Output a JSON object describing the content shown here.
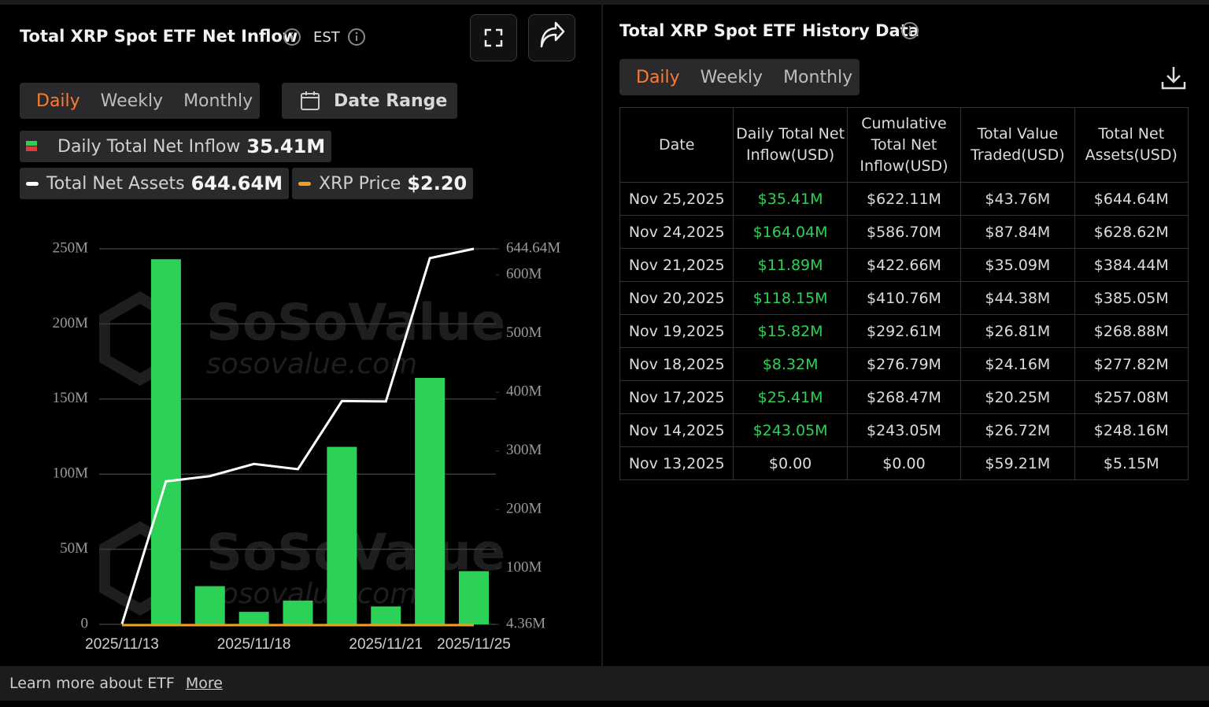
{
  "left_panel": {
    "title": "Total XRP Spot ETF Net Inflow",
    "timezone": "EST",
    "tabs": [
      "Daily",
      "Weekly",
      "Monthly"
    ],
    "date_range": "Date Range",
    "legend": [
      {
        "label": "Daily Total Net Inflow",
        "value": "35.41M"
      },
      {
        "label": "Total Net Assets",
        "value": "644.64M"
      },
      {
        "label": "XRP Price",
        "value": "$2.20"
      }
    ]
  },
  "watermark": {
    "brand": "SoSoValue",
    "site": "sosovalue.com"
  },
  "chart_data": {
    "type": "bar",
    "categories": [
      "2025/11/13",
      null,
      null,
      "2025/11/18",
      null,
      null,
      "2025/11/21",
      null,
      "2025/11/25"
    ],
    "series": [
      {
        "name": "Daily Total Net Inflow",
        "color": "#2ed158",
        "values": [
          0,
          243.05,
          25.41,
          8.32,
          15.82,
          118.15,
          11.89,
          164.04,
          35.41
        ]
      },
      {
        "name": "Total Net Assets",
        "color": "#ffffff",
        "axis": "y2",
        "type": "line",
        "values": [
          5.15,
          248.16,
          257.08,
          277.82,
          268.88,
          385.05,
          384.44,
          628.62,
          644.64
        ]
      }
    ],
    "ylim": [
      0,
      250
    ],
    "yticks": [
      {
        "value": 0,
        "label": "0"
      },
      {
        "value": 50,
        "label": "50M"
      },
      {
        "value": 100,
        "label": "100M"
      },
      {
        "value": 150,
        "label": "150M"
      },
      {
        "value": 200,
        "label": "200M"
      },
      {
        "value": 250,
        "label": "250M"
      }
    ],
    "y2lim": [
      4.36,
      644.64
    ],
    "y2ticks": [
      {
        "value": 4.36,
        "label": "4.36M"
      },
      {
        "value": 100,
        "label": "100M"
      },
      {
        "value": 200,
        "label": "200M"
      },
      {
        "value": 300,
        "label": "300M"
      },
      {
        "value": 400,
        "label": "400M"
      },
      {
        "value": 500,
        "label": "500M"
      },
      {
        "value": 600,
        "label": "600M"
      },
      {
        "value": 644.64,
        "label": "644.64M"
      }
    ],
    "grid": true
  },
  "right_panel": {
    "title": "Total XRP Spot ETF History Data",
    "tabs": [
      "Daily",
      "Weekly",
      "Monthly"
    ],
    "positive_color": "#2ed158",
    "table": {
      "columns": [
        "Date",
        "Daily Total Net Inflow(USD)",
        "Cumulative Total Net Inflow(USD)",
        "Total Value Traded(USD)",
        "Total Net Assets(USD)"
      ],
      "rows": [
        [
          "Nov 25,2025",
          "$35.41M",
          "$622.11M",
          "$43.76M",
          "$644.64M"
        ],
        [
          "Nov 24,2025",
          "$164.04M",
          "$586.70M",
          "$87.84M",
          "$628.62M"
        ],
        [
          "Nov 21,2025",
          "$11.89M",
          "$422.66M",
          "$35.09M",
          "$384.44M"
        ],
        [
          "Nov 20,2025",
          "$118.15M",
          "$410.76M",
          "$44.38M",
          "$385.05M"
        ],
        [
          "Nov 19,2025",
          "$15.82M",
          "$292.61M",
          "$26.81M",
          "$268.88M"
        ],
        [
          "Nov 18,2025",
          "$8.32M",
          "$276.79M",
          "$24.16M",
          "$277.82M"
        ],
        [
          "Nov 17,2025",
          "$25.41M",
          "$268.47M",
          "$20.25M",
          "$257.08M"
        ],
        [
          "Nov 14,2025",
          "$243.05M",
          "$243.05M",
          "$26.72M",
          "$248.16M"
        ],
        [
          "Nov 13,2025",
          "$0.00",
          "$0.00",
          "$59.21M",
          "$5.15M"
        ]
      ]
    }
  },
  "footer": {
    "text": "Learn more about ETF",
    "link": "More"
  }
}
